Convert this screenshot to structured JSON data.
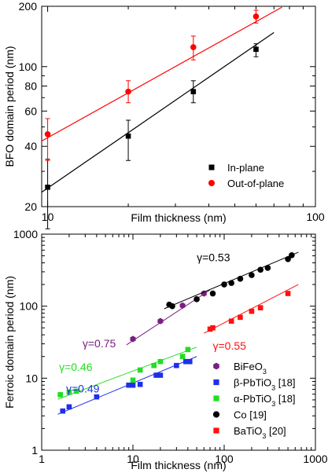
{
  "chart_data": [
    {
      "type": "scatter",
      "xlabel": "Film thickness (nm)",
      "ylabel": "BFO domain period (nm)",
      "xscale": "log",
      "yscale": "log",
      "xlim": [
        9.5,
        100
      ],
      "ylim": [
        20,
        200
      ],
      "xticks": [
        "10",
        "100"
      ],
      "yticks": [
        "20",
        "40",
        "60",
        "80",
        "100",
        "200"
      ],
      "legend_position": "bottom-right",
      "series": [
        {
          "name": "In-plane",
          "color": "#000000",
          "marker": "square",
          "points": [
            {
              "x": 10,
              "y": 25,
              "err_low": 9.5,
              "err_high": 9.5
            },
            {
              "x": 20,
              "y": 45,
              "err_low": 11,
              "err_high": 9
            },
            {
              "x": 35,
              "y": 75,
              "err_low": 9,
              "err_high": 10
            },
            {
              "x": 60,
              "y": 122,
              "err_low": 10,
              "err_high": 8
            }
          ],
          "fit": [
            [
              9.5,
              23.6
            ],
            [
              70,
              148
            ]
          ]
        },
        {
          "name": "Out-of-plane",
          "color": "#ff0000",
          "marker": "circle",
          "points": [
            {
              "x": 10,
              "y": 46,
              "err_low": 12,
              "err_high": 9
            },
            {
              "x": 20,
              "y": 75,
              "err_low": 9,
              "err_high": 10
            },
            {
              "x": 35,
              "y": 125,
              "err_low": 17,
              "err_high": 17
            },
            {
              "x": 60,
              "y": 178,
              "err_low": 13,
              "err_high": 13
            }
          ],
          "fit": [
            [
              9.5,
              42.5
            ],
            [
              75,
              198
            ]
          ]
        }
      ]
    },
    {
      "type": "scatter",
      "xlabel": "Film thickness (nm)",
      "ylabel": "Ferroic domain period (nm)",
      "xscale": "log",
      "yscale": "log",
      "xlim": [
        1,
        1000
      ],
      "ylim": [
        1,
        1000
      ],
      "xticks": [
        "1",
        "10",
        "100",
        "1000"
      ],
      "yticks": [
        "1",
        "10",
        "100",
        "1000"
      ],
      "legend_position": "bottom-right",
      "series": [
        {
          "name_html": "BiFeO<tspan baseline-shift=\"sub\" font-size=\"9\">3</tspan>",
          "color": "#7a1f80",
          "marker": "hexagon",
          "points": [
            [
              10,
              35
            ],
            [
              20,
              62
            ],
            [
              35,
              102
            ],
            [
              60,
              150
            ]
          ],
          "fit": [
            [
              8.5,
              29
            ],
            [
              70,
              168
            ]
          ]
        },
        {
          "name_html": "β-PbTiO<tspan baseline-shift=\"sub\" font-size=\"9\">3</tspan> [18]",
          "color": "#1f2fe8",
          "marker": "square",
          "points": [
            [
              1.7,
              3.5
            ],
            [
              2,
              4
            ],
            [
              4,
              5.5
            ],
            [
              9,
              8
            ],
            [
              10,
              8
            ],
            [
              12,
              8.2
            ],
            [
              18,
              11
            ],
            [
              20,
              11
            ],
            [
              30,
              15
            ],
            [
              38,
              17
            ],
            [
              42,
              17
            ]
          ],
          "fit": [
            [
              1.5,
              3.15
            ],
            [
              50,
              20
            ]
          ]
        },
        {
          "name_html": "α-PbTiO<tspan baseline-shift=\"sub\" font-size=\"9\">3</tspan> [18]",
          "color": "#22dd22",
          "marker": "square",
          "points": [
            [
              1.6,
              5.9
            ],
            [
              2,
              6.4
            ],
            [
              2.4,
              6.6
            ],
            [
              10,
              9.4
            ],
            [
              12,
              13
            ],
            [
              17,
              15
            ],
            [
              20,
              17
            ],
            [
              35,
              20
            ],
            [
              40,
              25
            ]
          ],
          "fit": [
            [
              1.5,
              5.1
            ],
            [
              50,
              27
            ]
          ]
        },
        {
          "name": "Co [19]",
          "color": "#000000",
          "marker": "circle",
          "points": [
            [
              25,
              105
            ],
            [
              27,
              100
            ],
            [
              50,
              125
            ],
            [
              75,
              150
            ],
            [
              100,
              200
            ],
            [
              120,
              210
            ],
            [
              150,
              240
            ],
            [
              200,
              270
            ],
            [
              250,
              320
            ],
            [
              300,
              340
            ],
            [
              500,
              450
            ],
            [
              550,
              510
            ]
          ],
          "fit": [
            [
              22,
              92
            ],
            [
              650,
              560
            ]
          ]
        },
        {
          "name_html": "BaTiO<tspan baseline-shift=\"sub\" font-size=\"9\">3</tspan> [20]",
          "color": "#ff1111",
          "marker": "square",
          "points": [
            [
              70,
              48
            ],
            [
              75,
              50
            ],
            [
              120,
              62
            ],
            [
              150,
              70
            ],
            [
              200,
              85
            ],
            [
              250,
              95
            ],
            [
              500,
              150
            ]
          ],
          "fit": [
            [
              60,
              42
            ],
            [
              650,
              200
            ]
          ]
        }
      ],
      "annotations": [
        {
          "text": "γ=0.53",
          "color": "#000000",
          "x": 50,
          "y": 420
        },
        {
          "text": "γ=0.75",
          "color": "#7a1f80",
          "x": 2.8,
          "y": 27
        },
        {
          "text": "γ=0.55",
          "color": "#ff1111",
          "x": 75,
          "y": 25
        },
        {
          "text": "γ=0.46",
          "color": "#22dd22",
          "x": 1.55,
          "y": 12.6
        },
        {
          "text": "γ=0.49",
          "color": "#1f2fe8",
          "x": 1.85,
          "y": 6.3
        }
      ]
    }
  ]
}
